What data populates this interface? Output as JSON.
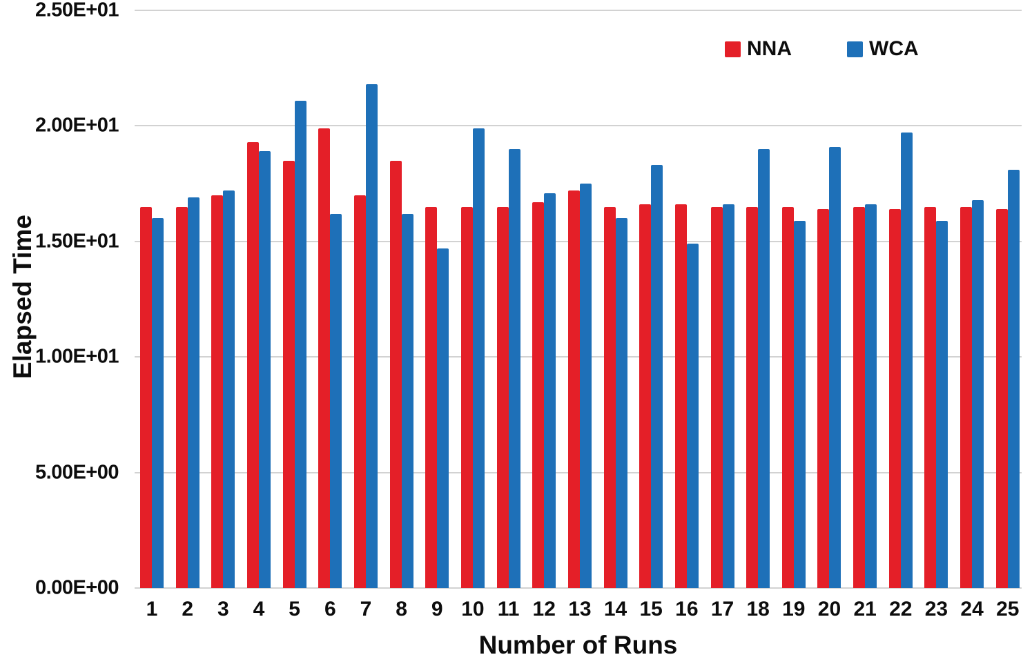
{
  "colors": {
    "nna_red": "#e41f28",
    "wca_blue": "#1e70b8",
    "gridline": "#d2d2d2",
    "axis_text": "#0d0d0d",
    "background": "#ffffff"
  },
  "legend": {
    "items": [
      {
        "label": "NNA",
        "color": "#e41f28"
      },
      {
        "label": "WCA",
        "color": "#1e70b8"
      }
    ]
  },
  "chart_data": {
    "type": "bar",
    "title": "",
    "xlabel": "Number of Runs",
    "ylabel": "Elapsed Time",
    "grid": true,
    "legend_position": "top-right",
    "ylim": [
      0,
      25
    ],
    "yticks": [
      {
        "value": 0,
        "label": "0.00E+00"
      },
      {
        "value": 5,
        "label": "5.00E+00"
      },
      {
        "value": 10,
        "label": "1.00E+01"
      },
      {
        "value": 15,
        "label": "1.50E+01"
      },
      {
        "value": 20,
        "label": "2.00E+01"
      },
      {
        "value": 25,
        "label": "2.50E+01"
      }
    ],
    "categories": [
      "1",
      "2",
      "3",
      "4",
      "5",
      "6",
      "7",
      "8",
      "9",
      "10",
      "11",
      "12",
      "13",
      "14",
      "15",
      "16",
      "17",
      "18",
      "19",
      "20",
      "21",
      "22",
      "23",
      "24",
      "25"
    ],
    "series": [
      {
        "name": "NNA",
        "color": "#e41f28",
        "values": [
          16.5,
          16.5,
          17.0,
          19.3,
          18.5,
          19.9,
          17.0,
          18.5,
          16.5,
          16.5,
          16.5,
          16.7,
          17.2,
          16.5,
          16.6,
          16.6,
          16.5,
          16.5,
          16.5,
          16.4,
          16.5,
          16.4,
          16.5,
          16.5,
          16.4
        ]
      },
      {
        "name": "WCA",
        "color": "#1e70b8",
        "values": [
          16.0,
          16.9,
          17.2,
          18.9,
          21.1,
          16.2,
          21.8,
          16.2,
          14.7,
          19.9,
          19.0,
          17.1,
          17.5,
          16.0,
          18.3,
          14.9,
          16.6,
          19.0,
          15.9,
          19.1,
          16.6,
          19.7,
          15.9,
          16.8,
          18.1
        ]
      }
    ]
  }
}
